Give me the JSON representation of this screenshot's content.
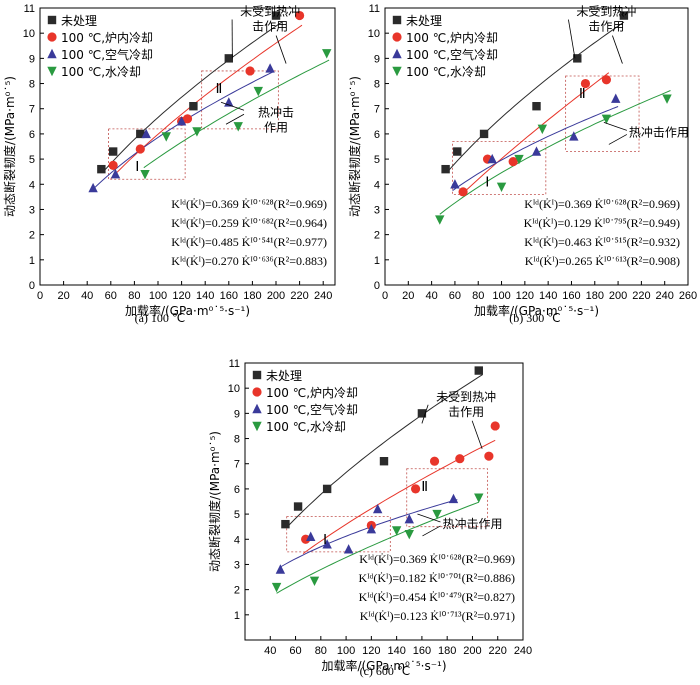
{
  "series_style": [
    {
      "color": "#2b2b2b",
      "marker": "square"
    },
    {
      "color": "#e8352a",
      "marker": "circle"
    },
    {
      "color": "#3a3a9a",
      "marker": "triangle-up"
    },
    {
      "color": "#2a9a40",
      "marker": "triangle-down"
    }
  ],
  "chart_data": [
    {
      "type": "scatter",
      "caption": "(a) 100 ℃",
      "xlabel": "加载率/(GPa·m⁰˙⁵·s⁻¹)",
      "ylabel": "动态断裂韧度/(MPa·m⁰˙⁵)",
      "xlim": [
        0,
        250
      ],
      "ylim": [
        0,
        11
      ],
      "xticks": [
        0,
        20,
        40,
        60,
        80,
        100,
        120,
        140,
        160,
        180,
        200,
        220,
        240
      ],
      "yticks": [
        1,
        2,
        3,
        4,
        5,
        6,
        7,
        8,
        9,
        10,
        11
      ],
      "legend": [
        "未处理",
        "100 ℃,炉内冷却",
        "100 ℃,空气冷却",
        "100 ℃,水冷却"
      ],
      "series": [
        {
          "name": "未处理",
          "points": [
            [
              52,
              4.6
            ],
            [
              62,
              5.3
            ],
            [
              85,
              6.0
            ],
            [
              130,
              7.1
            ],
            [
              160,
              9.0
            ],
            [
              200,
              10.7
            ]
          ],
          "fit": {
            "a": 0.369,
            "b": 0.628,
            "range": [
              55,
              205
            ]
          }
        },
        {
          "name": "100 ℃,炉内冷却",
          "points": [
            [
              62,
              4.75
            ],
            [
              85,
              5.4
            ],
            [
              120,
              6.5
            ],
            [
              125,
              6.6
            ],
            [
              178,
              8.5
            ],
            [
              220,
              10.7
            ]
          ],
          "fit": {
            "a": 0.259,
            "b": 0.682,
            "range": [
              60,
              222
            ]
          }
        },
        {
          "name": "100 ℃,空气冷却",
          "points": [
            [
              45,
              3.85
            ],
            [
              64,
              4.4
            ],
            [
              90,
              6.0
            ],
            [
              120,
              6.5
            ],
            [
              160,
              7.25
            ],
            [
              195,
              8.6
            ]
          ],
          "fit": {
            "a": 0.485,
            "b": 0.541,
            "range": [
              45,
              198
            ]
          }
        },
        {
          "name": "100 ℃,水冷却",
          "points": [
            [
              89,
              4.4
            ],
            [
              107,
              5.9
            ],
            [
              133,
              6.1
            ],
            [
              168,
              6.3
            ],
            [
              185,
              7.7
            ],
            [
              243,
              9.2
            ]
          ],
          "fit": {
            "a": 0.27,
            "b": 0.636,
            "range": [
              88,
              245
            ]
          }
        }
      ],
      "equations": [
        "Kᴵᵈ(K̇ᴵ)=0.369 K̇ᴵ⁰˙⁶²⁸(R²=0.969)",
        "Kᴵᵈ(K̇ᴵ)=0.259 K̇ᴵ⁰˙⁶⁸²(R²=0.964)",
        "Kᴵᵈ(K̇ᴵ)=0.485 K̇ᴵ⁰˙⁵⁴¹(R²=0.977)",
        "Kᴵᵈ(K̇ᴵ)=0.270 K̇ᴵ⁰˙⁶³⁶(R²=0.883)"
      ],
      "annotations": {
        "unshocked": "未受到热冲击作用",
        "shocked": "热冲击作用",
        "region1": "Ⅰ",
        "region2": "Ⅱ"
      },
      "regions": [
        {
          "x": [
            58,
            123
          ],
          "y": [
            4.2,
            6.2
          ]
        },
        {
          "x": [
            137,
            202
          ],
          "y": [
            6.2,
            8.5
          ]
        }
      ]
    },
    {
      "type": "scatter",
      "caption": "(b) 300 ℃",
      "xlabel": "加载率/(GPa·m⁰˙⁵·s⁻¹)",
      "ylabel": "动态断裂韧度/(MPa·m⁰˙⁵)",
      "xlim": [
        0,
        260
      ],
      "ylim": [
        0,
        11
      ],
      "xticks": [
        0,
        20,
        40,
        60,
        80,
        100,
        120,
        140,
        160,
        180,
        200,
        220,
        240,
        260
      ],
      "yticks": [
        1,
        2,
        3,
        4,
        5,
        6,
        7,
        8,
        9,
        10,
        11
      ],
      "legend": [
        "未处理",
        "100 ℃,炉内冷却",
        "100 ℃,空气冷却",
        "100 ℃,水冷却"
      ],
      "series": [
        {
          "name": "未处理",
          "points": [
            [
              52,
              4.6
            ],
            [
              62,
              5.3
            ],
            [
              85,
              6.0
            ],
            [
              130,
              7.1
            ],
            [
              165,
              9.0
            ],
            [
              205,
              10.7
            ]
          ],
          "fit": {
            "a": 0.369,
            "b": 0.628,
            "range": [
              55,
              205
            ]
          }
        },
        {
          "name": "100 ℃,炉内冷却",
          "points": [
            [
              67,
              3.7
            ],
            [
              88,
              5.0
            ],
            [
              110,
              4.9
            ],
            [
              172,
              8.0
            ],
            [
              190,
              8.15
            ]
          ],
          "fit": {
            "a": 0.129,
            "b": 0.795,
            "range": [
              65,
              192
            ]
          }
        },
        {
          "name": "100 ℃,空气冷却",
          "points": [
            [
              60,
              4.0
            ],
            [
              92,
              5.0
            ],
            [
              130,
              5.3
            ],
            [
              162,
              5.9
            ],
            [
              198,
              7.4
            ]
          ],
          "fit": {
            "a": 0.463,
            "b": 0.515,
            "range": [
              58,
              200
            ]
          }
        },
        {
          "name": "100 ℃,水冷却",
          "points": [
            [
              47,
              2.6
            ],
            [
              100,
              3.9
            ],
            [
              115,
              5.0
            ],
            [
              135,
              6.2
            ],
            [
              190,
              6.6
            ],
            [
              242,
              7.4
            ]
          ],
          "fit": {
            "a": 0.265,
            "b": 0.613,
            "range": [
              47,
              245
            ]
          }
        }
      ],
      "equations": [
        "Kᴵᵈ(K̇ᴵ)=0.369 K̇ᴵ⁰˙⁶²⁸(R²=0.969)",
        "Kᴵᵈ(K̇ᴵ)=0.129 K̇ᴵ⁰˙⁷⁹⁵(R²=0.949)",
        "Kᴵᵈ(K̇ᴵ)=0.463 K̇ᴵ⁰˙⁵¹⁵(R²=0.932)",
        "Kᴵᵈ(K̇ᴵ)=0.265 K̇ᴵ⁰˙⁶¹³(R²=0.908)"
      ],
      "annotations": {
        "unshocked": "未受到热冲击作用",
        "shocked": "热冲击作用",
        "region1": "Ⅰ",
        "region2": "Ⅱ"
      },
      "regions": [
        {
          "x": [
            58,
            138
          ],
          "y": [
            3.6,
            5.7
          ]
        },
        {
          "x": [
            155,
            218
          ],
          "y": [
            5.3,
            8.3
          ]
        }
      ]
    },
    {
      "type": "scatter",
      "caption": "(c) 600 ℃",
      "xlabel": "加载率/(GPa·m⁰˙⁵·s⁻¹)",
      "ylabel": "动态断裂韧度/(MPa·m⁰˙⁵)",
      "xlim": [
        20,
        240
      ],
      "ylim": [
        0,
        11
      ],
      "xticks": [
        40,
        60,
        80,
        100,
        120,
        140,
        160,
        180,
        200,
        220,
        240
      ],
      "yticks": [
        1,
        2,
        3,
        4,
        5,
        6,
        7,
        8,
        9,
        10,
        11
      ],
      "legend": [
        "未处理",
        "100 ℃,炉内冷却",
        "100 ℃,空气冷却",
        "100 ℃,水冷却"
      ],
      "series": [
        {
          "name": "未处理",
          "points": [
            [
              52,
              4.6
            ],
            [
              62,
              5.3
            ],
            [
              85,
              6.0
            ],
            [
              130,
              7.1
            ],
            [
              160,
              9.0
            ],
            [
              205,
              10.7
            ]
          ],
          "fit": {
            "a": 0.369,
            "b": 0.628,
            "range": [
              55,
              208
            ]
          }
        },
        {
          "name": "100 ℃,炉内冷却",
          "points": [
            [
              68,
              4.0
            ],
            [
              120,
              4.55
            ],
            [
              155,
              6.0
            ],
            [
              170,
              7.1
            ],
            [
              190,
              7.2
            ],
            [
              213,
              7.3
            ],
            [
              218,
              8.5
            ]
          ],
          "fit": {
            "a": 0.182,
            "b": 0.701,
            "range": [
              66,
              218
            ]
          }
        },
        {
          "name": "100 ℃,空气冷却",
          "points": [
            [
              48,
              2.8
            ],
            [
              72,
              4.1
            ],
            [
              85,
              3.8
            ],
            [
              102,
              3.6
            ],
            [
              120,
              4.4
            ],
            [
              125,
              5.2
            ],
            [
              150,
              4.8
            ],
            [
              185,
              5.6
            ]
          ],
          "fit": {
            "a": 0.454,
            "b": 0.479,
            "range": [
              48,
              188
            ]
          }
        },
        {
          "name": "100 ℃,水冷却",
          "points": [
            [
              45,
              2.1
            ],
            [
              75,
              2.35
            ],
            [
              140,
              4.35
            ],
            [
              150,
              4.2
            ],
            [
              172,
              5.0
            ],
            [
              205,
              5.65
            ]
          ],
          "fit": {
            "a": 0.123,
            "b": 0.713,
            "range": [
              45,
              205
            ]
          }
        }
      ],
      "equations": [
        "Kᴵᵈ(K̇ᴵ)=0.369 K̇ᴵ⁰˙⁶²⁸(R²=0.969)",
        "Kᴵᵈ(K̇ᴵ)=0.182 K̇ᴵ⁰˙⁷⁰¹(R²=0.886)",
        "Kᴵᵈ(K̇ᴵ)=0.454 K̇ᴵ⁰˙⁴⁷⁹(R²=0.827)",
        "Kᴵᵈ(K̇ᴵ)=0.123 K̇ᴵ⁰˙⁷¹³(R²=0.971)"
      ],
      "annotations": {
        "unshocked": "未受到热冲击作用",
        "shocked": "热冲击作用",
        "region1": "Ⅰ",
        "region2": "Ⅱ"
      },
      "regions": [
        {
          "x": [
            53,
            135
          ],
          "y": [
            3.5,
            4.9
          ]
        },
        {
          "x": [
            148,
            212
          ],
          "y": [
            4.5,
            6.8
          ]
        }
      ]
    }
  ]
}
